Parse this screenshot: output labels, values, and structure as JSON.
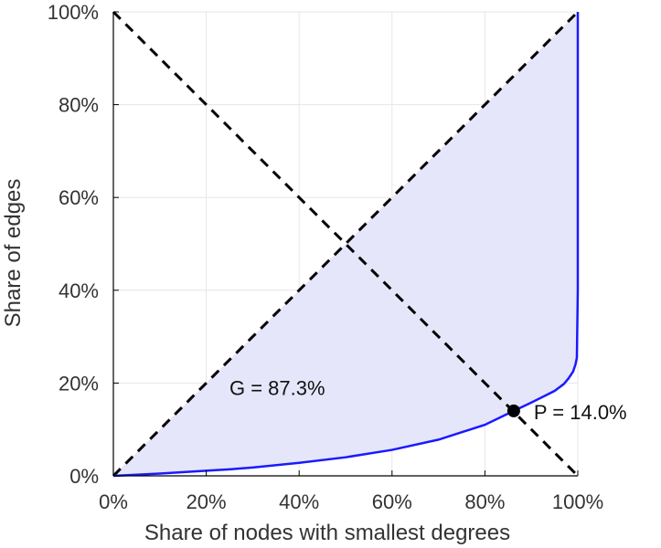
{
  "chart_data": {
    "type": "line",
    "title": "",
    "xlabel": "Share of nodes with smallest degrees",
    "ylabel": "Share of edges",
    "xlim": [
      0,
      100
    ],
    "ylim": [
      0,
      100
    ],
    "grid": true,
    "x_tick_labels": [
      "0%",
      "20%",
      "40%",
      "60%",
      "80%",
      "100%"
    ],
    "y_tick_labels": [
      "0%",
      "20%",
      "40%",
      "60%",
      "80%",
      "100%"
    ],
    "x_ticks": [
      0,
      20,
      40,
      60,
      80,
      100
    ],
    "y_ticks": [
      0,
      20,
      40,
      60,
      80,
      100
    ],
    "series": [
      {
        "x": [
          0,
          10,
          20,
          25,
          30,
          40,
          50,
          60,
          70,
          80,
          86.2,
          90,
          93,
          95,
          97,
          98,
          99,
          99.5,
          99.8,
          100,
          100
        ],
        "y": [
          0,
          0.5,
          1.1,
          1.4,
          1.8,
          2.8,
          4.0,
          5.6,
          7.8,
          11.0,
          14.0,
          15.8,
          17.3,
          18.3,
          19.8,
          21.0,
          22.5,
          24.0,
          25.5,
          40,
          100
        ]
      },
      {
        "x": [
          0,
          100
        ],
        "y": [
          0,
          100
        ]
      },
      {
        "x": [
          0,
          100
        ],
        "y": [
          100,
          0
        ]
      }
    ],
    "annotations": [
      {
        "text": "G = 87.3%",
        "x": 25,
        "y": 19
      },
      {
        "text": "P = 14.0%",
        "x": 86.2,
        "y": 14.0
      }
    ],
    "colors": {
      "curve": "#1a1aff",
      "fill": "#e6e6fb",
      "diagonal": "#000000",
      "grid": "#e6e6e6",
      "axis": "#000000"
    }
  }
}
